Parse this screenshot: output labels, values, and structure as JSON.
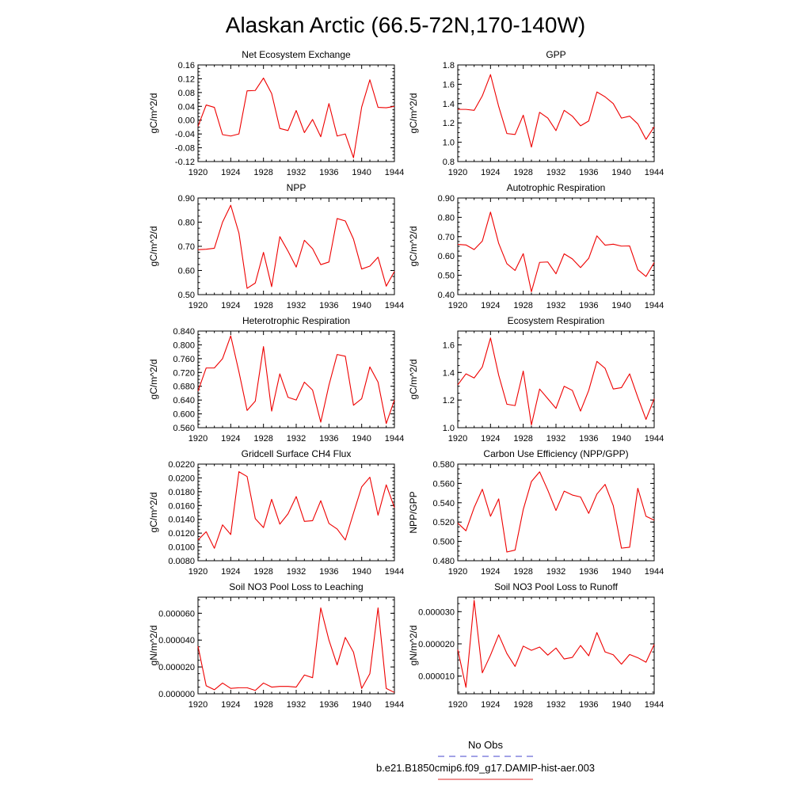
{
  "figure": {
    "title": "Alaskan Arctic (66.5-72N,170-140W)",
    "legend": {
      "entries": [
        {
          "label": "No Obs",
          "color": "#6a6ad8",
          "style": "dashed"
        },
        {
          "label": "b.e21.B1850cmip6.f09_g17.DAMIP-hist-aer.003",
          "color": "#e35050",
          "style": "solid"
        }
      ]
    },
    "line_color": "#ee0000"
  },
  "chart_data": [
    {
      "type": "line",
      "title": "Net Ecosystem Exchange",
      "ylabel": "gC/m^2/d",
      "xlim": [
        1920,
        1944
      ],
      "ylim": [
        -0.12,
        0.16
      ],
      "xticks": [
        "1920",
        "1924",
        "1928",
        "1932",
        "1936",
        "1940",
        "1944"
      ],
      "yticks": [
        "-0.12",
        "-0.08",
        "-0.04",
        "0.00",
        "0.04",
        "0.08",
        "0.12",
        "0.16"
      ],
      "series": [
        {
          "x_start": 1920,
          "values": [
            -0.018,
            0.044,
            0.037,
            -0.042,
            -0.046,
            -0.04,
            0.085,
            0.086,
            0.122,
            0.077,
            -0.024,
            -0.03,
            0.028,
            -0.036,
            0.002,
            -0.048,
            0.048,
            -0.046,
            -0.04,
            -0.109,
            0.038,
            0.117,
            0.037,
            0.036,
            0.04
          ]
        }
      ]
    },
    {
      "type": "line",
      "title": "GPP",
      "ylabel": "gC/m^2/d",
      "xlim": [
        1920,
        1944
      ],
      "ylim": [
        0.8,
        1.8
      ],
      "xticks": [
        "1920",
        "1924",
        "1928",
        "1932",
        "1936",
        "1940",
        "1944"
      ],
      "yticks": [
        "0.8",
        "1.0",
        "1.2",
        "1.4",
        "1.6",
        "1.8"
      ],
      "series": [
        {
          "x_start": 1920,
          "values": [
            1.34,
            1.34,
            1.33,
            1.48,
            1.7,
            1.37,
            1.09,
            1.08,
            1.28,
            0.95,
            1.31,
            1.25,
            1.12,
            1.33,
            1.27,
            1.17,
            1.22,
            1.52,
            1.47,
            1.4,
            1.25,
            1.27,
            1.19,
            1.03,
            1.16
          ]
        }
      ]
    },
    {
      "type": "line",
      "title": "NPP",
      "ylabel": "gC/m^2/d",
      "xlim": [
        1920,
        1944
      ],
      "ylim": [
        0.5,
        0.9
      ],
      "xticks": [
        "1920",
        "1924",
        "1928",
        "1932",
        "1936",
        "1940",
        "1944"
      ],
      "yticks": [
        "0.50",
        "0.60",
        "0.70",
        "0.80",
        "0.90"
      ],
      "series": [
        {
          "x_start": 1920,
          "values": [
            0.686,
            0.688,
            0.692,
            0.8,
            0.87,
            0.755,
            0.526,
            0.548,
            0.675,
            0.533,
            0.74,
            0.68,
            0.614,
            0.725,
            0.69,
            0.624,
            0.635,
            0.815,
            0.805,
            0.73,
            0.606,
            0.618,
            0.655,
            0.535,
            0.596
          ]
        }
      ]
    },
    {
      "type": "line",
      "title": "Autotrophic Respiration",
      "ylabel": "gC/m^2/d",
      "xlim": [
        1920,
        1944
      ],
      "ylim": [
        0.4,
        0.9
      ],
      "xticks": [
        "1920",
        "1924",
        "1928",
        "1932",
        "1936",
        "1940",
        "1944"
      ],
      "yticks": [
        "0.40",
        "0.50",
        "0.60",
        "0.70",
        "0.80",
        "0.90"
      ],
      "series": [
        {
          "x_start": 1920,
          "values": [
            0.66,
            0.657,
            0.633,
            0.677,
            0.827,
            0.665,
            0.56,
            0.525,
            0.612,
            0.415,
            0.567,
            0.569,
            0.508,
            0.611,
            0.585,
            0.54,
            0.588,
            0.704,
            0.656,
            0.661,
            0.651,
            0.652,
            0.529,
            0.494,
            0.566
          ]
        }
      ]
    },
    {
      "type": "line",
      "title": "Heterotrophic Respiration",
      "ylabel": "gC/m^2/d",
      "xlim": [
        1920,
        1944
      ],
      "ylim": [
        0.56,
        0.84
      ],
      "xticks": [
        "1920",
        "1924",
        "1928",
        "1932",
        "1936",
        "1940",
        "1944"
      ],
      "yticks": [
        "0.560",
        "0.600",
        "0.640",
        "0.680",
        "0.720",
        "0.760",
        "0.800",
        "0.840"
      ],
      "series": [
        {
          "x_start": 1920,
          "values": [
            0.666,
            0.733,
            0.733,
            0.76,
            0.826,
            0.722,
            0.61,
            0.637,
            0.795,
            0.608,
            0.716,
            0.648,
            0.64,
            0.692,
            0.669,
            0.576,
            0.683,
            0.772,
            0.767,
            0.625,
            0.644,
            0.736,
            0.692,
            0.572,
            0.64
          ]
        }
      ]
    },
    {
      "type": "line",
      "title": "Ecosystem Respiration",
      "ylabel": "gC/m^2/d",
      "xlim": [
        1920,
        1944
      ],
      "ylim": [
        1.0,
        1.7
      ],
      "xticks": [
        "1920",
        "1924",
        "1928",
        "1932",
        "1936",
        "1940",
        "1944"
      ],
      "yticks": [
        "1.0",
        "1.2",
        "1.4",
        "1.6"
      ],
      "series": [
        {
          "x_start": 1920,
          "values": [
            1.31,
            1.39,
            1.36,
            1.44,
            1.65,
            1.38,
            1.17,
            1.16,
            1.41,
            1.02,
            1.28,
            1.21,
            1.14,
            1.3,
            1.27,
            1.12,
            1.27,
            1.48,
            1.43,
            1.28,
            1.29,
            1.39,
            1.22,
            1.06,
            1.21
          ]
        }
      ]
    },
    {
      "type": "line",
      "title": "Gridcell Surface CH4 Flux",
      "ylabel": "gC/m^2/d",
      "xlim": [
        1920,
        1944
      ],
      "ylim": [
        0.008,
        0.022
      ],
      "xticks": [
        "1920",
        "1924",
        "1928",
        "1932",
        "1936",
        "1940",
        "1944"
      ],
      "yticks": [
        "0.0080",
        "0.0100",
        "0.0120",
        "0.0140",
        "0.0160",
        "0.0180",
        "0.0200",
        "0.0220"
      ],
      "series": [
        {
          "x_start": 1920,
          "values": [
            0.011,
            0.0122,
            0.0098,
            0.0132,
            0.0118,
            0.0209,
            0.0202,
            0.0141,
            0.0128,
            0.0169,
            0.0133,
            0.0148,
            0.0173,
            0.0137,
            0.0138,
            0.0167,
            0.0134,
            0.0126,
            0.011,
            0.0149,
            0.0187,
            0.0201,
            0.0146,
            0.019,
            0.0157
          ]
        }
      ]
    },
    {
      "type": "line",
      "title": "Carbon Use Efficiency (NPP/GPP)",
      "ylabel": "NPP/GPP",
      "xlim": [
        1920,
        1944
      ],
      "ylim": [
        0.48,
        0.58
      ],
      "xticks": [
        "1920",
        "1924",
        "1928",
        "1932",
        "1936",
        "1940",
        "1944"
      ],
      "yticks": [
        "0.480",
        "0.500",
        "0.520",
        "0.540",
        "0.560",
        "0.580"
      ],
      "series": [
        {
          "x_start": 1920,
          "values": [
            0.519,
            0.511,
            0.535,
            0.554,
            0.526,
            0.544,
            0.489,
            0.491,
            0.533,
            0.562,
            0.572,
            0.553,
            0.532,
            0.552,
            0.548,
            0.546,
            0.529,
            0.549,
            0.559,
            0.537,
            0.493,
            0.494,
            0.555,
            0.526,
            0.522
          ]
        }
      ]
    },
    {
      "type": "line",
      "title": "Soil NO3 Pool Loss to Leaching",
      "ylabel": "gN/m^2/d",
      "xlim": [
        1920,
        1944
      ],
      "ylim": [
        0.0,
        7.2e-05
      ],
      "xticks": [
        "1920",
        "1924",
        "1928",
        "1932",
        "1936",
        "1940",
        "1944"
      ],
      "yticks": [
        "0.000000",
        "0.000020",
        "0.000040",
        "0.000060"
      ],
      "series": [
        {
          "x_start": 1920,
          "values": [
            3.55e-05,
            6e-06,
            3e-06,
            8e-06,
            4e-06,
            4.5e-06,
            4.5e-06,
            2.5e-06,
            8e-06,
            5e-06,
            5.5e-06,
            5.5e-06,
            5e-06,
            1.4e-05,
            1.2e-05,
            6.4e-05,
            4e-05,
            2.15e-05,
            4.2e-05,
            3.1e-05,
            4e-06,
            1.5e-05,
            6.4e-05,
            4e-06,
            1e-06
          ]
        }
      ]
    },
    {
      "type": "line",
      "title": "Soil NO3 Pool Loss to Runoff",
      "ylabel": "gN/m^2/d",
      "xlim": [
        1920,
        1944
      ],
      "ylim": [
        4.5e-06,
        3.45e-05
      ],
      "xticks": [
        "1920",
        "1924",
        "1928",
        "1932",
        "1936",
        "1940",
        "1944"
      ],
      "yticks": [
        "0.000010",
        "0.000020",
        "0.000030"
      ],
      "series": [
        {
          "x_start": 1920,
          "values": [
            1.82e-05,
            6.5e-06,
            3.35e-05,
            1.1e-05,
            1.65e-05,
            2.28e-05,
            1.7e-05,
            1.3e-05,
            1.93e-05,
            1.8e-05,
            1.9e-05,
            1.65e-05,
            1.87e-05,
            1.53e-05,
            1.58e-05,
            1.95e-05,
            1.63e-05,
            2.35e-05,
            1.75e-05,
            1.66e-05,
            1.37e-05,
            1.67e-05,
            1.57e-05,
            1.43e-05,
            1.98e-05
          ]
        }
      ]
    }
  ]
}
